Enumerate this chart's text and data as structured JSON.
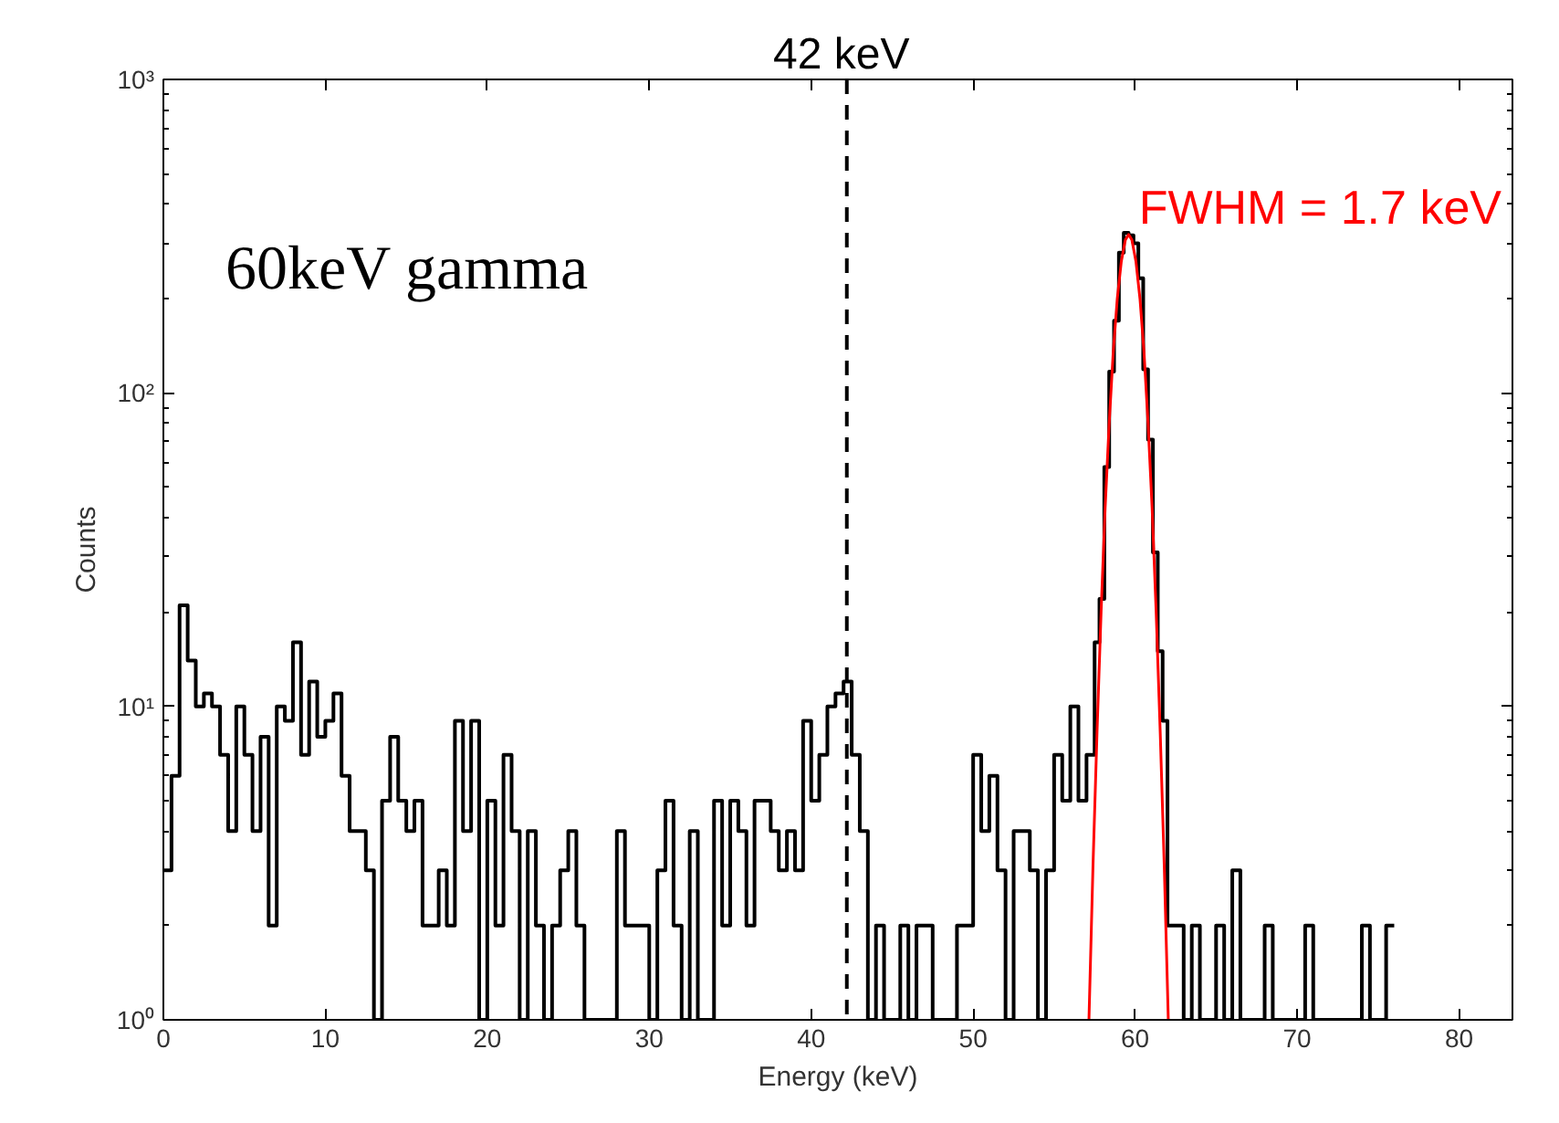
{
  "chart_data": {
    "type": "histogram",
    "xlabel": "Energy (keV)",
    "ylabel": "Counts",
    "color": "#000000",
    "bins": [
      0,
      0.5,
      1,
      1.5,
      2,
      2.5,
      3,
      3.5,
      4,
      4.5,
      5,
      5.5,
      6,
      6.5,
      7,
      7.5,
      8,
      8.5,
      9,
      9.5,
      10,
      10.5,
      11,
      11.5,
      12,
      12.5,
      13,
      13.5,
      14,
      14.5,
      15,
      15.5,
      16,
      16.5,
      17,
      17.5,
      18,
      18.5,
      19,
      19.5,
      20,
      20.5,
      21,
      21.5,
      22,
      22.5,
      23,
      23.5,
      24,
      24.5,
      25,
      25.5,
      26,
      26.5,
      27,
      27.5,
      28,
      28.5,
      29,
      29.5,
      30,
      30.5,
      31,
      31.5,
      32,
      32.5,
      33,
      33.5,
      34,
      34.5,
      35,
      35.5,
      36,
      36.5,
      37,
      37.5,
      38,
      38.5,
      39,
      39.5,
      40,
      40.5,
      41,
      41.5,
      42,
      42.5,
      43,
      43.5,
      44,
      44.5,
      45,
      45.5,
      46,
      46.5,
      47,
      47.5,
      48,
      48.5,
      49,
      49.5,
      50,
      50.5,
      51,
      51.5,
      52,
      52.5,
      53,
      53.5,
      54,
      54.5,
      55,
      55.5,
      56,
      56.5,
      57,
      57.5,
      57.8,
      58.1,
      58.4,
      58.7,
      59.0,
      59.3,
      59.6,
      59.9,
      60.2,
      60.5,
      60.8,
      61.1,
      61.4,
      61.7,
      62.0,
      62.3,
      63,
      63.5,
      64,
      64.5,
      65,
      65.5,
      66,
      66.5,
      67,
      67.5,
      68,
      68.5,
      69,
      69.5,
      70,
      70.5,
      71,
      71.5,
      72,
      72.5,
      73,
      73.5,
      74,
      74.5,
      75,
      75.5,
      76
    ],
    "values": [
      3,
      6,
      21,
      14,
      10,
      11,
      10,
      7,
      4,
      10,
      7,
      4,
      8,
      2,
      10,
      9,
      16,
      7,
      12,
      8,
      9,
      11,
      6,
      4,
      4,
      3,
      1,
      5,
      8,
      5,
      4,
      5,
      2,
      2,
      3,
      2,
      9,
      4,
      9,
      1,
      5,
      2,
      7,
      4,
      1,
      4,
      2,
      1,
      2,
      3,
      4,
      2,
      1,
      1,
      1,
      1,
      4,
      2,
      2,
      2,
      1,
      3,
      5,
      2,
      1,
      4,
      1,
      1,
      5,
      2,
      5,
      4,
      2,
      5,
      5,
      4,
      3,
      4,
      3,
      9,
      5,
      7,
      10,
      11,
      12,
      7,
      4,
      1,
      2,
      1,
      1,
      2,
      1,
      2,
      2,
      1,
      1,
      1,
      2,
      2,
      7,
      4,
      6,
      3,
      1,
      4,
      4,
      3,
      1,
      3,
      7,
      5,
      10,
      5,
      7,
      16,
      22,
      58,
      117,
      170,
      280,
      324,
      318,
      300,
      232,
      119,
      71,
      31,
      15,
      9,
      2,
      2,
      1,
      2,
      1,
      1,
      2,
      1,
      3,
      1,
      1,
      1,
      2,
      1,
      1,
      1,
      1,
      2,
      1,
      1,
      1,
      1,
      1,
      1,
      2,
      1,
      1,
      2
    ],
    "series": [
      {
        "type": "line",
        "color": "#ff0000",
        "x": [
          57.15,
          57.4,
          57.65,
          57.9,
          58.15,
          58.4,
          58.65,
          58.9,
          59.15,
          59.4,
          59.6,
          59.8,
          60.05,
          60.3,
          60.55,
          60.8,
          61.05,
          61.3,
          61.55,
          61.8,
          62.05
        ],
        "values": [
          1.0,
          3.1,
          8.3,
          20,
          43,
          80,
          135,
          200,
          263,
          308,
          320,
          308,
          263,
          200,
          135,
          80,
          43,
          20,
          8.3,
          3.1,
          1.0
        ]
      }
    ],
    "ref_lines": [
      {
        "axis": "x",
        "value": 42.2,
        "label": "42 keV",
        "line_style": "dashed",
        "color": "#000000"
      }
    ],
    "annotations": [
      "60keV gamma",
      "FWHM = 1.7 keV"
    ],
    "log": "y",
    "xlim": [
      0,
      83.3
    ],
    "ylim": [
      1,
      1000
    ],
    "xticks": [
      0,
      10,
      20,
      30,
      40,
      50,
      60,
      70,
      80
    ],
    "yticks": [
      {
        "value": 1,
        "label": "10⁰"
      },
      {
        "value": 10,
        "label": "10¹"
      },
      {
        "value": 100,
        "label": "10²"
      },
      {
        "value": 1000,
        "label": "10³"
      }
    ],
    "grid": false
  }
}
